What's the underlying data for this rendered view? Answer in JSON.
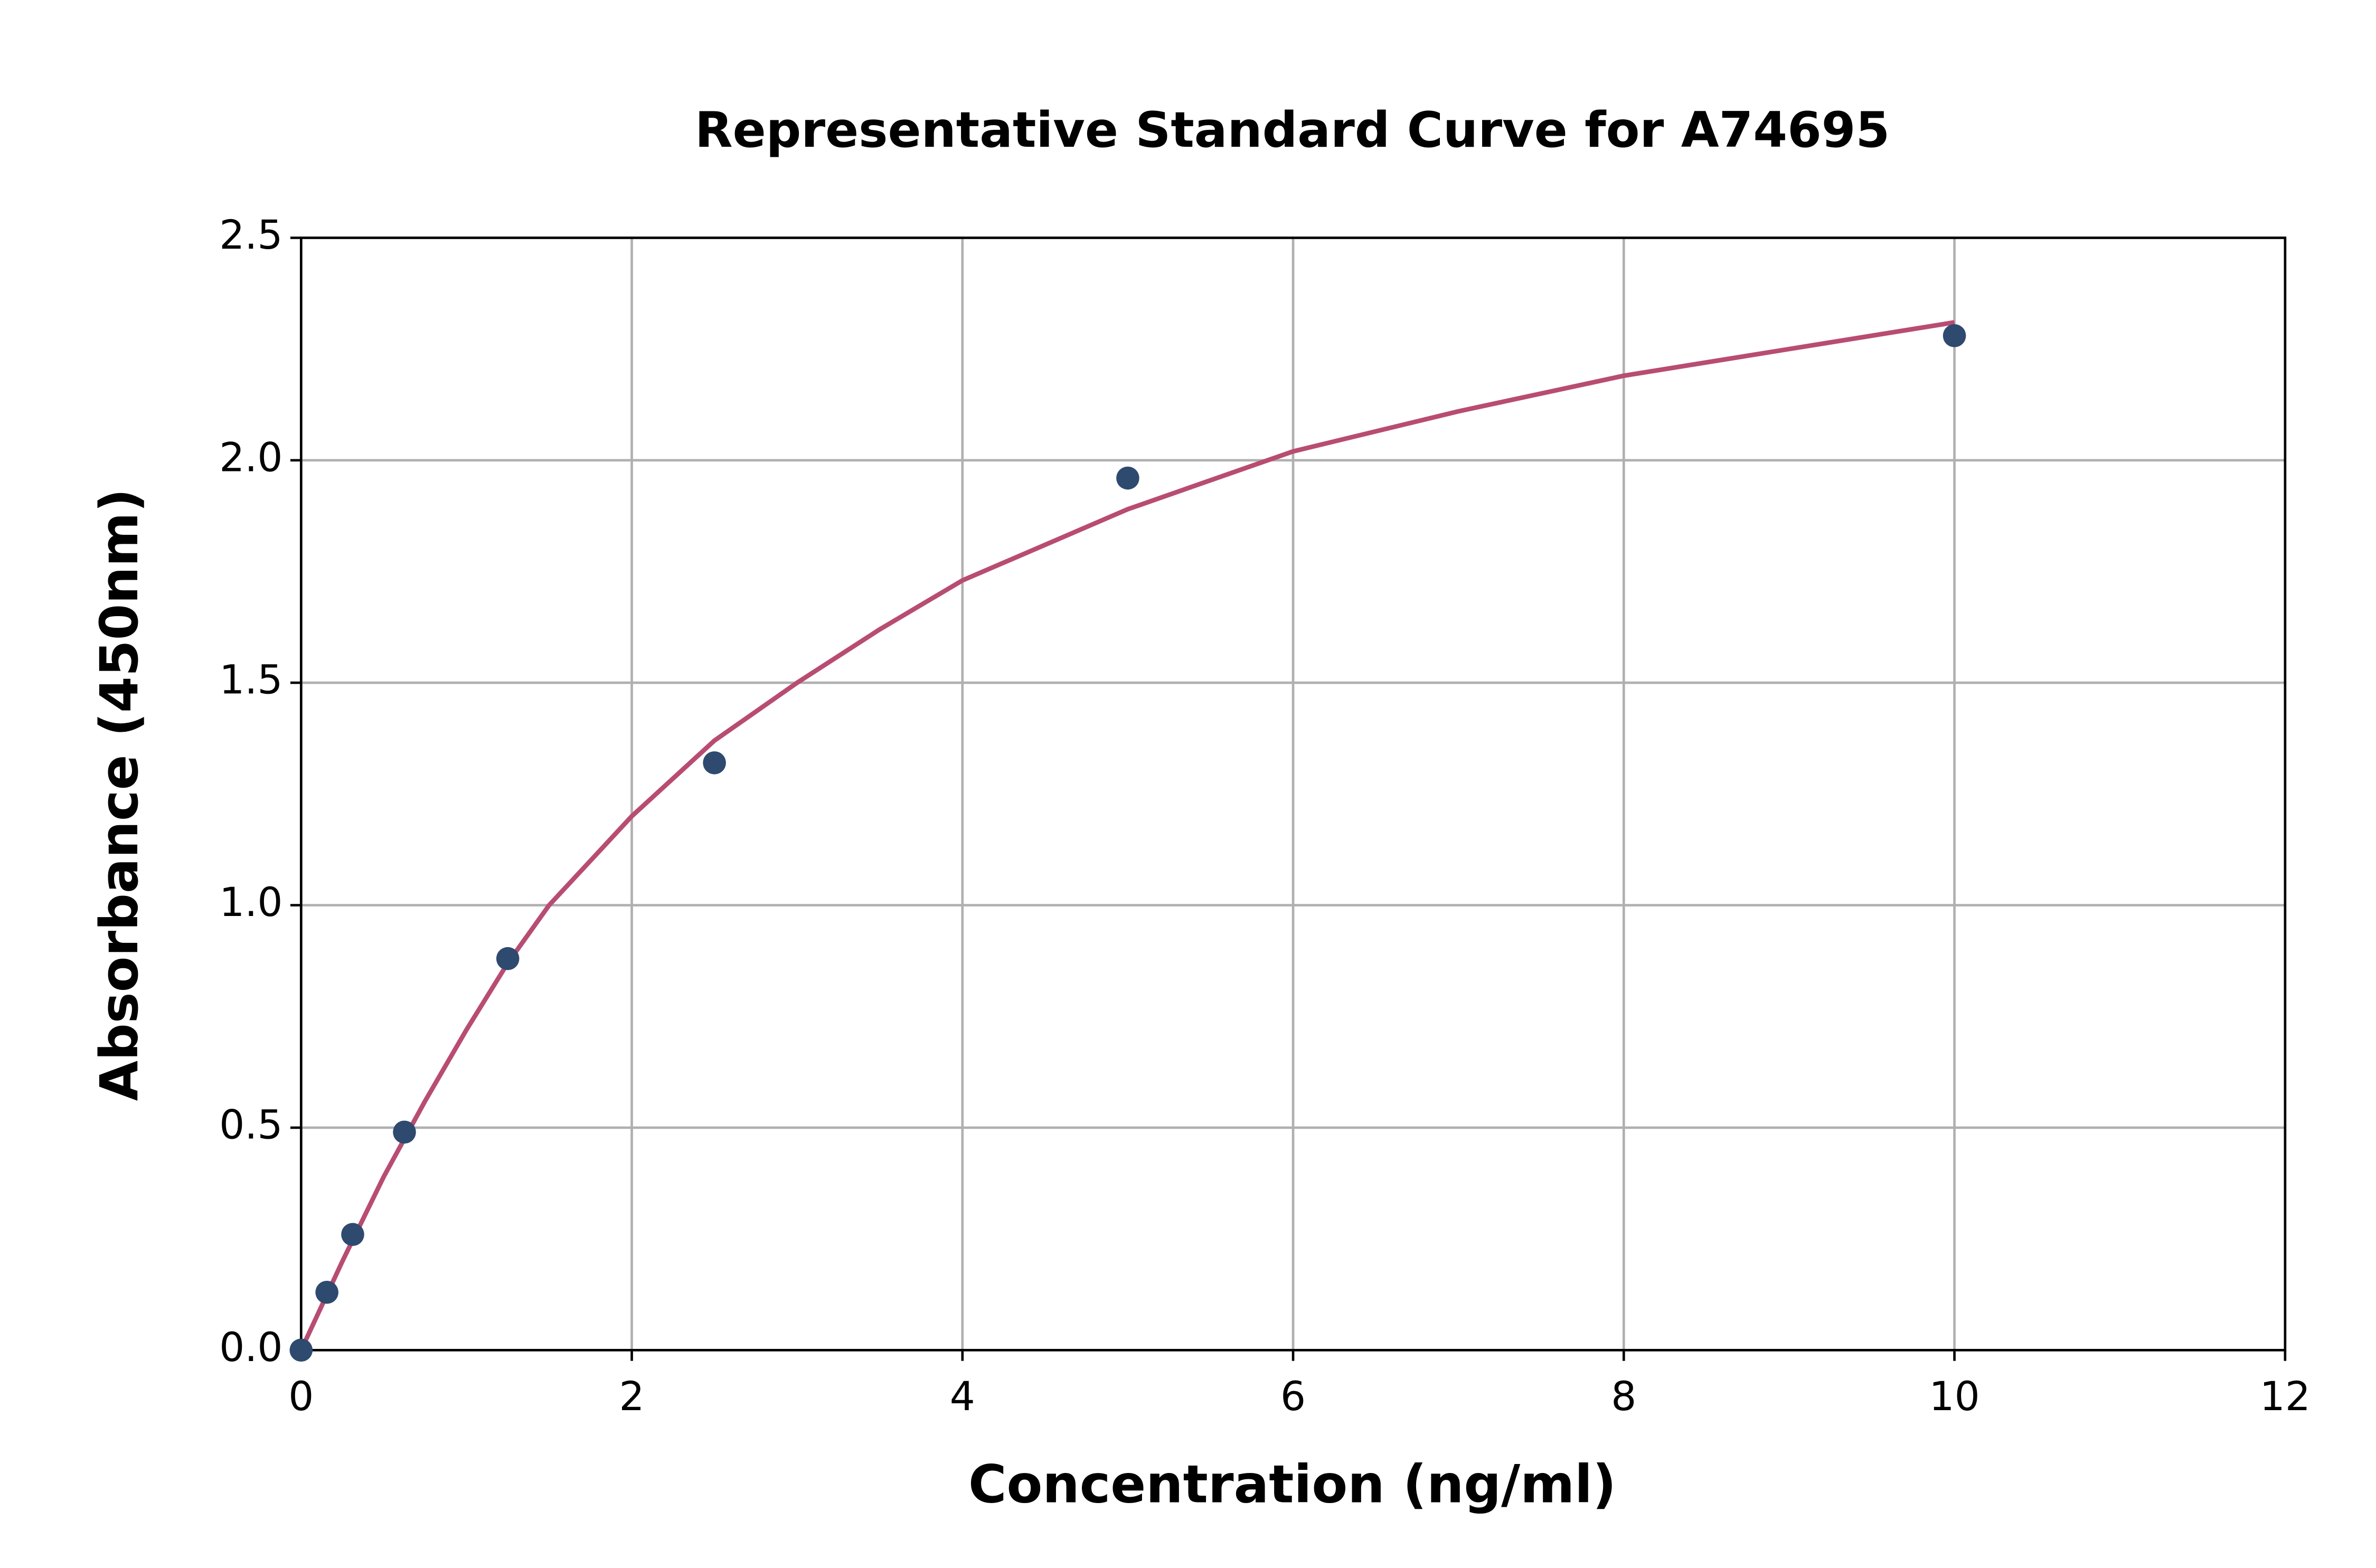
{
  "chart_data": {
    "type": "scatter",
    "title": "Representative Standard Curve for A74695",
    "xlabel": "Concentration (ng/ml)",
    "ylabel": "Absorbance (450nm)",
    "points": {
      "color": "#2e4a6e",
      "x": [
        0,
        0.156,
        0.312,
        0.625,
        1.25,
        2.5,
        5,
        10
      ],
      "values": [
        0,
        0.13,
        0.26,
        0.49,
        0.88,
        1.32,
        1.96,
        2.28
      ]
    },
    "curve": {
      "color": "#b84c72",
      "x": [
        0,
        0.25,
        0.5,
        0.75,
        1,
        1.25,
        1.5,
        2,
        2.5,
        3,
        3.5,
        4,
        5,
        6,
        7,
        8,
        9,
        10
      ],
      "values": [
        0,
        0.2,
        0.39,
        0.56,
        0.72,
        0.87,
        1.0,
        1.2,
        1.37,
        1.5,
        1.62,
        1.73,
        1.89,
        2.02,
        2.11,
        2.19,
        2.25,
        2.31
      ]
    },
    "xlim": [
      0,
      12
    ],
    "ylim": [
      0,
      2.5
    ],
    "xticks": [
      0,
      2,
      4,
      6,
      8,
      10,
      12
    ],
    "yticks": [
      {
        "value": 0,
        "label": "0.0"
      },
      {
        "value": 0.5,
        "label": "0.5"
      },
      {
        "value": 1,
        "label": "1.0"
      },
      {
        "value": 1.5,
        "label": "1.5"
      },
      {
        "value": 2,
        "label": "2.0"
      },
      {
        "value": 2.5,
        "label": "2.5"
      }
    ],
    "grid": true
  }
}
